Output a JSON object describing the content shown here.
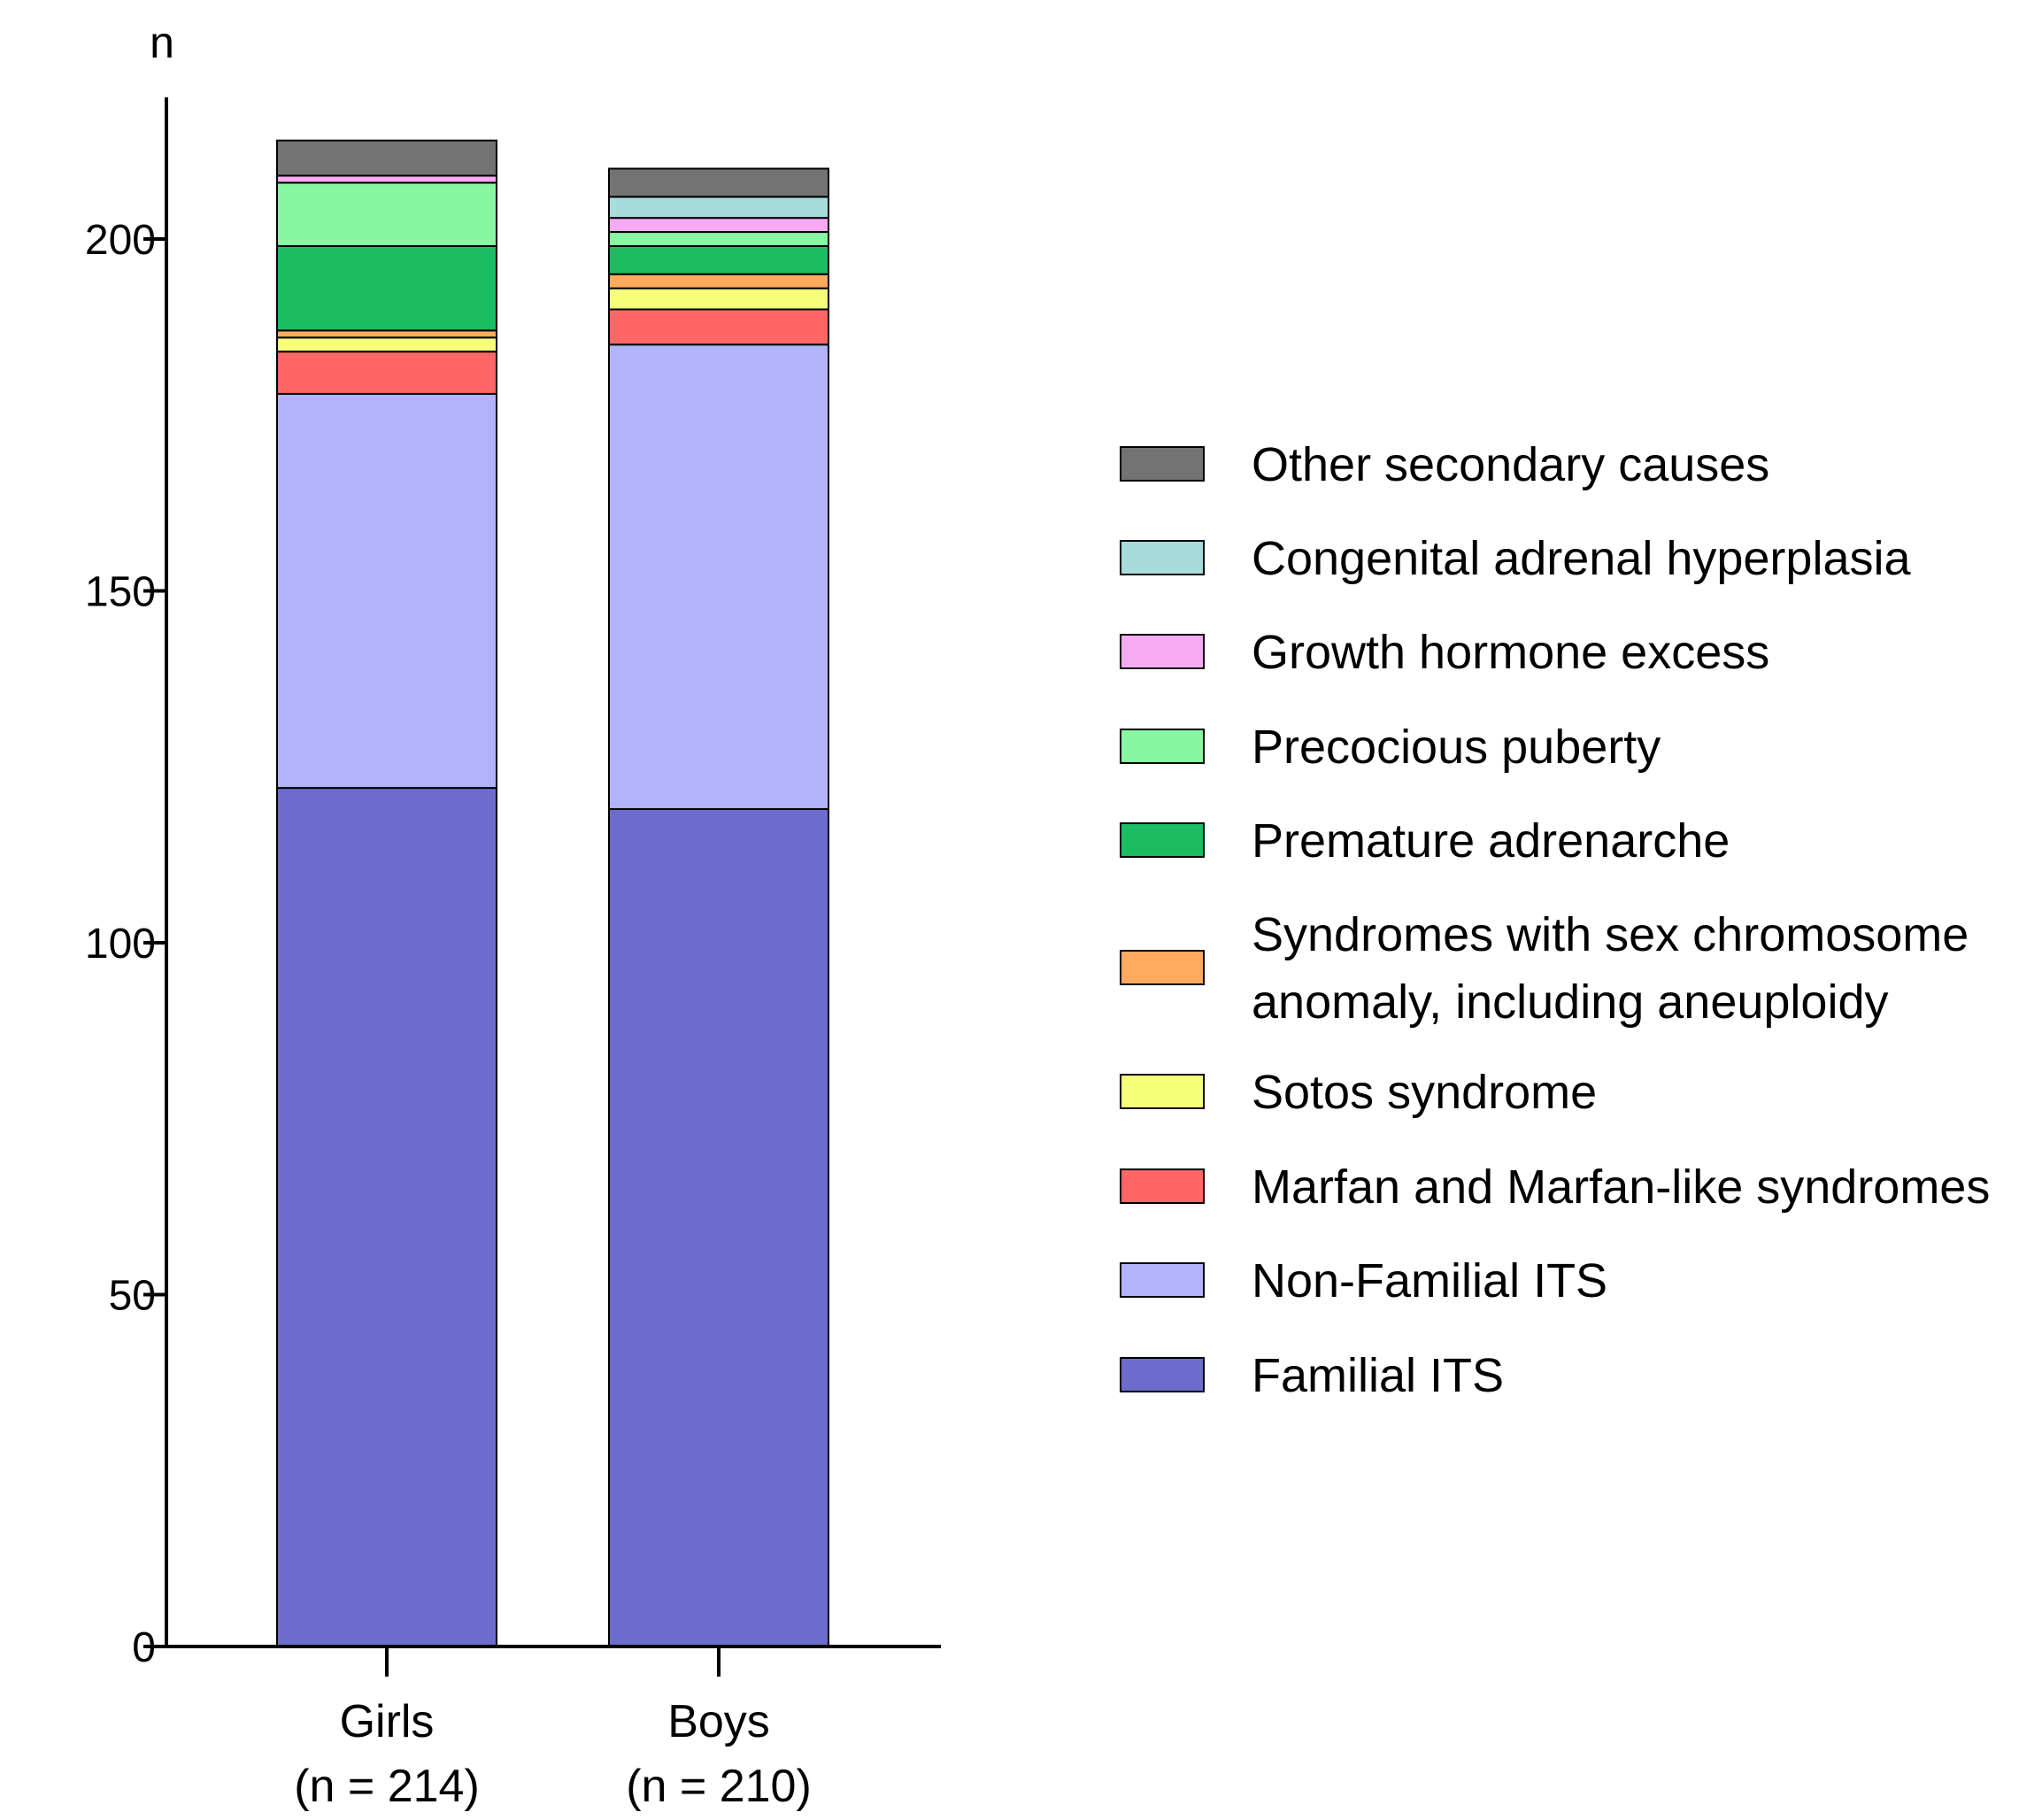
{
  "chart_data": {
    "type": "bar",
    "stacked": true,
    "ylabel": "n",
    "ylim": [
      0,
      220
    ],
    "yticks": [
      0,
      50,
      100,
      150,
      200
    ],
    "categories": [
      {
        "name": "Girls",
        "sub": "(n = 214)"
      },
      {
        "name": "Boys",
        "sub": "(n = 210)"
      }
    ],
    "series": [
      {
        "name": "Familial ITS",
        "color": "#6c6ccc",
        "values": [
          122,
          119
        ]
      },
      {
        "name": "Non-Familial ITS",
        "color": "#b3b3fb",
        "values": [
          56,
          66
        ]
      },
      {
        "name": "Marfan and Marfan-like syndromes",
        "color": "#ff6666",
        "values": [
          6,
          5
        ]
      },
      {
        "name": "Sotos syndrome",
        "color": "#f5ff7a",
        "values": [
          2,
          3
        ]
      },
      {
        "name": "Syndromes with sex chromosome anomaly, including aneuploidy",
        "color": "#ffaa5e",
        "values": [
          1,
          2
        ]
      },
      {
        "name": "Premature adrenarche",
        "color": "#1cbc63",
        "values": [
          12,
          4
        ]
      },
      {
        "name": "Precocious puberty",
        "color": "#88f7a2",
        "values": [
          9,
          2
        ]
      },
      {
        "name": "Growth hormone excess",
        "color": "#f5aaf2",
        "values": [
          1,
          2
        ]
      },
      {
        "name": "Congenital adrenal hyperplasia",
        "color": "#a6dcdc",
        "values": [
          0,
          3
        ]
      },
      {
        "name": "Other secondary causes",
        "color": "#737373",
        "values": [
          5,
          4
        ]
      }
    ],
    "legend": {
      "position": "right",
      "order": [
        {
          "lines": [
            "Other secondary causes"
          ],
          "color": "#737373"
        },
        {
          "lines": [
            "Congenital adrenal hyperplasia"
          ],
          "color": "#a6dcdc"
        },
        {
          "lines": [
            "Growth hormone excess"
          ],
          "color": "#f5aaf2"
        },
        {
          "lines": [
            "Precocious puberty"
          ],
          "color": "#88f7a2"
        },
        {
          "lines": [
            "Premature adrenarche"
          ],
          "color": "#1cbc63"
        },
        {
          "lines": [
            "Syndromes with sex chromosome",
            "anomaly, including aneuploidy"
          ],
          "color": "#ffaa5e"
        },
        {
          "lines": [
            "Sotos syndrome"
          ],
          "color": "#f5ff7a"
        },
        {
          "lines": [
            "Marfan and Marfan-like syndromes"
          ],
          "color": "#ff6666"
        },
        {
          "lines": [
            "Non-Familial ITS"
          ],
          "color": "#b3b3fb"
        },
        {
          "lines": [
            "Familial ITS"
          ],
          "color": "#6c6ccc"
        }
      ]
    }
  }
}
